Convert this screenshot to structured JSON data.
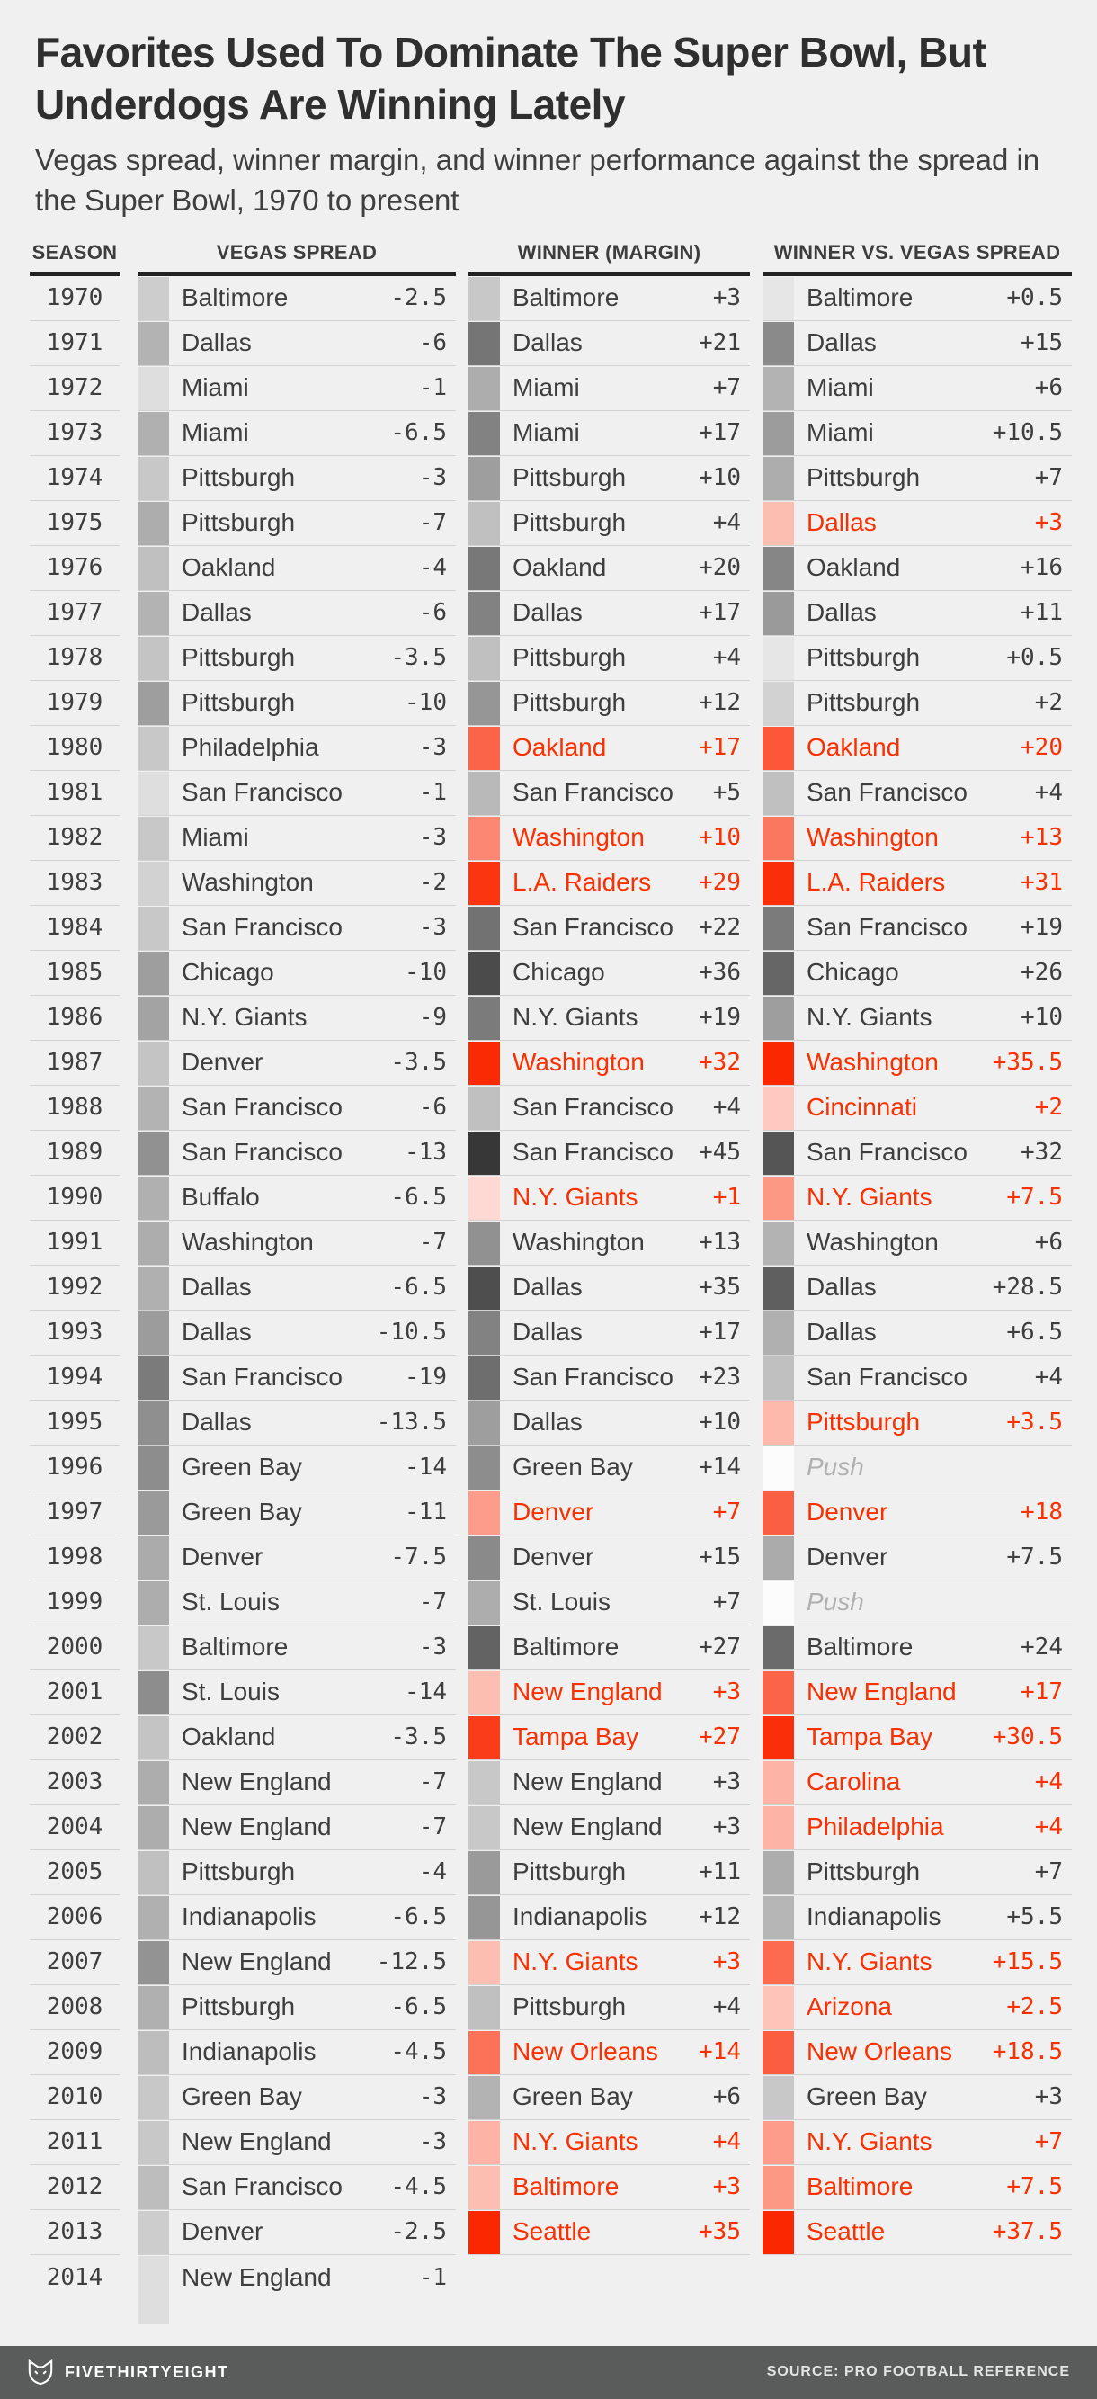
{
  "chart_data": {
    "type": "table",
    "title": "Favorites Used To Dominate The Super Bowl, But Underdogs Are Winning Lately",
    "subtitle": "Vegas spread, winner margin, and winner performance against the spread in the Super Bowl, 1970 to present",
    "columns": {
      "season": "SEASON",
      "vegas": "VEGAS SPREAD",
      "winner": "WINNER (MARGIN)",
      "vs": "WINNER VS. VEGAS SPREAD"
    },
    "push_label": "Push",
    "rows": [
      {
        "season": "1970",
        "vegas": {
          "team": "Baltimore",
          "value": -2.5
        },
        "winner": {
          "team": "Baltimore",
          "value": 3,
          "upset": false
        },
        "vs": {
          "team": "Baltimore",
          "value": 0.5,
          "upset": false
        }
      },
      {
        "season": "1971",
        "vegas": {
          "team": "Dallas",
          "value": -6
        },
        "winner": {
          "team": "Dallas",
          "value": 21,
          "upset": false
        },
        "vs": {
          "team": "Dallas",
          "value": 15,
          "upset": false
        }
      },
      {
        "season": "1972",
        "vegas": {
          "team": "Miami",
          "value": -1
        },
        "winner": {
          "team": "Miami",
          "value": 7,
          "upset": false
        },
        "vs": {
          "team": "Miami",
          "value": 6,
          "upset": false
        }
      },
      {
        "season": "1973",
        "vegas": {
          "team": "Miami",
          "value": -6.5
        },
        "winner": {
          "team": "Miami",
          "value": 17,
          "upset": false
        },
        "vs": {
          "team": "Miami",
          "value": 10.5,
          "upset": false
        }
      },
      {
        "season": "1974",
        "vegas": {
          "team": "Pittsburgh",
          "value": -3
        },
        "winner": {
          "team": "Pittsburgh",
          "value": 10,
          "upset": false
        },
        "vs": {
          "team": "Pittsburgh",
          "value": 7,
          "upset": false
        }
      },
      {
        "season": "1975",
        "vegas": {
          "team": "Pittsburgh",
          "value": -7
        },
        "winner": {
          "team": "Pittsburgh",
          "value": 4,
          "upset": false
        },
        "vs": {
          "team": "Dallas",
          "value": 3,
          "upset": true
        }
      },
      {
        "season": "1976",
        "vegas": {
          "team": "Oakland",
          "value": -4
        },
        "winner": {
          "team": "Oakland",
          "value": 20,
          "upset": false
        },
        "vs": {
          "team": "Oakland",
          "value": 16,
          "upset": false
        }
      },
      {
        "season": "1977",
        "vegas": {
          "team": "Dallas",
          "value": -6
        },
        "winner": {
          "team": "Dallas",
          "value": 17,
          "upset": false
        },
        "vs": {
          "team": "Dallas",
          "value": 11,
          "upset": false
        }
      },
      {
        "season": "1978",
        "vegas": {
          "team": "Pittsburgh",
          "value": -3.5
        },
        "winner": {
          "team": "Pittsburgh",
          "value": 4,
          "upset": false
        },
        "vs": {
          "team": "Pittsburgh",
          "value": 0.5,
          "upset": false
        }
      },
      {
        "season": "1979",
        "vegas": {
          "team": "Pittsburgh",
          "value": -10
        },
        "winner": {
          "team": "Pittsburgh",
          "value": 12,
          "upset": false
        },
        "vs": {
          "team": "Pittsburgh",
          "value": 2,
          "upset": false
        }
      },
      {
        "season": "1980",
        "vegas": {
          "team": "Philadelphia",
          "value": -3
        },
        "winner": {
          "team": "Oakland",
          "value": 17,
          "upset": true
        },
        "vs": {
          "team": "Oakland",
          "value": 20,
          "upset": true
        }
      },
      {
        "season": "1981",
        "vegas": {
          "team": "San Francisco",
          "value": -1
        },
        "winner": {
          "team": "San Francisco",
          "value": 5,
          "upset": false
        },
        "vs": {
          "team": "San Francisco",
          "value": 4,
          "upset": false
        }
      },
      {
        "season": "1982",
        "vegas": {
          "team": "Miami",
          "value": -3
        },
        "winner": {
          "team": "Washington",
          "value": 10,
          "upset": true
        },
        "vs": {
          "team": "Washington",
          "value": 13,
          "upset": true
        }
      },
      {
        "season": "1983",
        "vegas": {
          "team": "Washington",
          "value": -2
        },
        "winner": {
          "team": "L.A. Raiders",
          "value": 29,
          "upset": true
        },
        "vs": {
          "team": "L.A. Raiders",
          "value": 31,
          "upset": true
        }
      },
      {
        "season": "1984",
        "vegas": {
          "team": "San Francisco",
          "value": -3
        },
        "winner": {
          "team": "San Francisco",
          "value": 22,
          "upset": false
        },
        "vs": {
          "team": "San Francisco",
          "value": 19,
          "upset": false
        }
      },
      {
        "season": "1985",
        "vegas": {
          "team": "Chicago",
          "value": -10
        },
        "winner": {
          "team": "Chicago",
          "value": 36,
          "upset": false
        },
        "vs": {
          "team": "Chicago",
          "value": 26,
          "upset": false
        }
      },
      {
        "season": "1986",
        "vegas": {
          "team": "N.Y. Giants",
          "value": -9
        },
        "winner": {
          "team": "N.Y. Giants",
          "value": 19,
          "upset": false
        },
        "vs": {
          "team": "N.Y. Giants",
          "value": 10,
          "upset": false
        }
      },
      {
        "season": "1987",
        "vegas": {
          "team": "Denver",
          "value": -3.5
        },
        "winner": {
          "team": "Washington",
          "value": 32,
          "upset": true
        },
        "vs": {
          "team": "Washington",
          "value": 35.5,
          "upset": true
        }
      },
      {
        "season": "1988",
        "vegas": {
          "team": "San Francisco",
          "value": -6
        },
        "winner": {
          "team": "San Francisco",
          "value": 4,
          "upset": false
        },
        "vs": {
          "team": "Cincinnati",
          "value": 2,
          "upset": true
        }
      },
      {
        "season": "1989",
        "vegas": {
          "team": "San Francisco",
          "value": -13
        },
        "winner": {
          "team": "San Francisco",
          "value": 45,
          "upset": false
        },
        "vs": {
          "team": "San Francisco",
          "value": 32,
          "upset": false
        }
      },
      {
        "season": "1990",
        "vegas": {
          "team": "Buffalo",
          "value": -6.5
        },
        "winner": {
          "team": "N.Y. Giants",
          "value": 1,
          "upset": true
        },
        "vs": {
          "team": "N.Y. Giants",
          "value": 7.5,
          "upset": true
        }
      },
      {
        "season": "1991",
        "vegas": {
          "team": "Washington",
          "value": -7
        },
        "winner": {
          "team": "Washington",
          "value": 13,
          "upset": false
        },
        "vs": {
          "team": "Washington",
          "value": 6,
          "upset": false
        }
      },
      {
        "season": "1992",
        "vegas": {
          "team": "Dallas",
          "value": -6.5
        },
        "winner": {
          "team": "Dallas",
          "value": 35,
          "upset": false
        },
        "vs": {
          "team": "Dallas",
          "value": 28.5,
          "upset": false
        }
      },
      {
        "season": "1993",
        "vegas": {
          "team": "Dallas",
          "value": -10.5
        },
        "winner": {
          "team": "Dallas",
          "value": 17,
          "upset": false
        },
        "vs": {
          "team": "Dallas",
          "value": 6.5,
          "upset": false
        }
      },
      {
        "season": "1994",
        "vegas": {
          "team": "San Francisco",
          "value": -19
        },
        "winner": {
          "team": "San Francisco",
          "value": 23,
          "upset": false
        },
        "vs": {
          "team": "San Francisco",
          "value": 4,
          "upset": false
        }
      },
      {
        "season": "1995",
        "vegas": {
          "team": "Dallas",
          "value": -13.5
        },
        "winner": {
          "team": "Dallas",
          "value": 10,
          "upset": false
        },
        "vs": {
          "team": "Pittsburgh",
          "value": 3.5,
          "upset": true
        }
      },
      {
        "season": "1996",
        "vegas": {
          "team": "Green Bay",
          "value": -14
        },
        "winner": {
          "team": "Green Bay",
          "value": 14,
          "upset": false
        },
        "vs": {
          "push": true
        }
      },
      {
        "season": "1997",
        "vegas": {
          "team": "Green Bay",
          "value": -11
        },
        "winner": {
          "team": "Denver",
          "value": 7,
          "upset": true
        },
        "vs": {
          "team": "Denver",
          "value": 18,
          "upset": true
        }
      },
      {
        "season": "1998",
        "vegas": {
          "team": "Denver",
          "value": -7.5
        },
        "winner": {
          "team": "Denver",
          "value": 15,
          "upset": false
        },
        "vs": {
          "team": "Denver",
          "value": 7.5,
          "upset": false
        }
      },
      {
        "season": "1999",
        "vegas": {
          "team": "St. Louis",
          "value": -7
        },
        "winner": {
          "team": "St. Louis",
          "value": 7,
          "upset": false
        },
        "vs": {
          "push": true
        }
      },
      {
        "season": "2000",
        "vegas": {
          "team": "Baltimore",
          "value": -3
        },
        "winner": {
          "team": "Baltimore",
          "value": 27,
          "upset": false
        },
        "vs": {
          "team": "Baltimore",
          "value": 24,
          "upset": false
        }
      },
      {
        "season": "2001",
        "vegas": {
          "team": "St. Louis",
          "value": -14
        },
        "winner": {
          "team": "New England",
          "value": 3,
          "upset": true
        },
        "vs": {
          "team": "New England",
          "value": 17,
          "upset": true
        }
      },
      {
        "season": "2002",
        "vegas": {
          "team": "Oakland",
          "value": -3.5
        },
        "winner": {
          "team": "Tampa Bay",
          "value": 27,
          "upset": true
        },
        "vs": {
          "team": "Tampa Bay",
          "value": 30.5,
          "upset": true
        }
      },
      {
        "season": "2003",
        "vegas": {
          "team": "New England",
          "value": -7
        },
        "winner": {
          "team": "New England",
          "value": 3,
          "upset": false
        },
        "vs": {
          "team": "Carolina",
          "value": 4,
          "upset": true
        }
      },
      {
        "season": "2004",
        "vegas": {
          "team": "New England",
          "value": -7
        },
        "winner": {
          "team": "New England",
          "value": 3,
          "upset": false
        },
        "vs": {
          "team": "Philadelphia",
          "value": 4,
          "upset": true
        }
      },
      {
        "season": "2005",
        "vegas": {
          "team": "Pittsburgh",
          "value": -4
        },
        "winner": {
          "team": "Pittsburgh",
          "value": 11,
          "upset": false
        },
        "vs": {
          "team": "Pittsburgh",
          "value": 7,
          "upset": false
        }
      },
      {
        "season": "2006",
        "vegas": {
          "team": "Indianapolis",
          "value": -6.5
        },
        "winner": {
          "team": "Indianapolis",
          "value": 12,
          "upset": false
        },
        "vs": {
          "team": "Indianapolis",
          "value": 5.5,
          "upset": false
        }
      },
      {
        "season": "2007",
        "vegas": {
          "team": "New England",
          "value": -12.5
        },
        "winner": {
          "team": "N.Y. Giants",
          "value": 3,
          "upset": true
        },
        "vs": {
          "team": "N.Y. Giants",
          "value": 15.5,
          "upset": true
        }
      },
      {
        "season": "2008",
        "vegas": {
          "team": "Pittsburgh",
          "value": -6.5
        },
        "winner": {
          "team": "Pittsburgh",
          "value": 4,
          "upset": false
        },
        "vs": {
          "team": "Arizona",
          "value": 2.5,
          "upset": true
        }
      },
      {
        "season": "2009",
        "vegas": {
          "team": "Indianapolis",
          "value": -4.5
        },
        "winner": {
          "team": "New Orleans",
          "value": 14,
          "upset": true
        },
        "vs": {
          "team": "New Orleans",
          "value": 18.5,
          "upset": true
        }
      },
      {
        "season": "2010",
        "vegas": {
          "team": "Green Bay",
          "value": -3
        },
        "winner": {
          "team": "Green Bay",
          "value": 6,
          "upset": false
        },
        "vs": {
          "team": "Green Bay",
          "value": 3,
          "upset": false
        }
      },
      {
        "season": "2011",
        "vegas": {
          "team": "New England",
          "value": -3
        },
        "winner": {
          "team": "N.Y. Giants",
          "value": 4,
          "upset": true
        },
        "vs": {
          "team": "N.Y. Giants",
          "value": 7,
          "upset": true
        }
      },
      {
        "season": "2012",
        "vegas": {
          "team": "San Francisco",
          "value": -4.5
        },
        "winner": {
          "team": "Baltimore",
          "value": 3,
          "upset": true
        },
        "vs": {
          "team": "Baltimore",
          "value": 7.5,
          "upset": true
        }
      },
      {
        "season": "2013",
        "vegas": {
          "team": "Denver",
          "value": -2.5
        },
        "winner": {
          "team": "Seattle",
          "value": 35,
          "upset": true
        },
        "vs": {
          "team": "Seattle",
          "value": 37.5,
          "upset": true
        }
      },
      {
        "season": "2014",
        "vegas": {
          "team": "New England",
          "value": -1
        },
        "winner": null,
        "vs": null
      }
    ]
  },
  "footer": {
    "brand": "FIVETHIRTYEIGHT",
    "source": "SOURCE: PRO FOOTBALL REFERENCE"
  },
  "colors": {
    "background": "#f0f0f0",
    "text": "#3e3e3e",
    "upset_red": "#fa3000",
    "bar_red_full": "#fa2700",
    "bar_red_light": "#fddbd3",
    "bar_gray_dark": "#373737",
    "bar_gray_light": "#dedede",
    "push_text": "#b0b0b0",
    "row_rule": "#d2d2d2",
    "header_rule": "#222222",
    "footer_bg": "#595c5b",
    "footer_text": "#ffffff"
  }
}
